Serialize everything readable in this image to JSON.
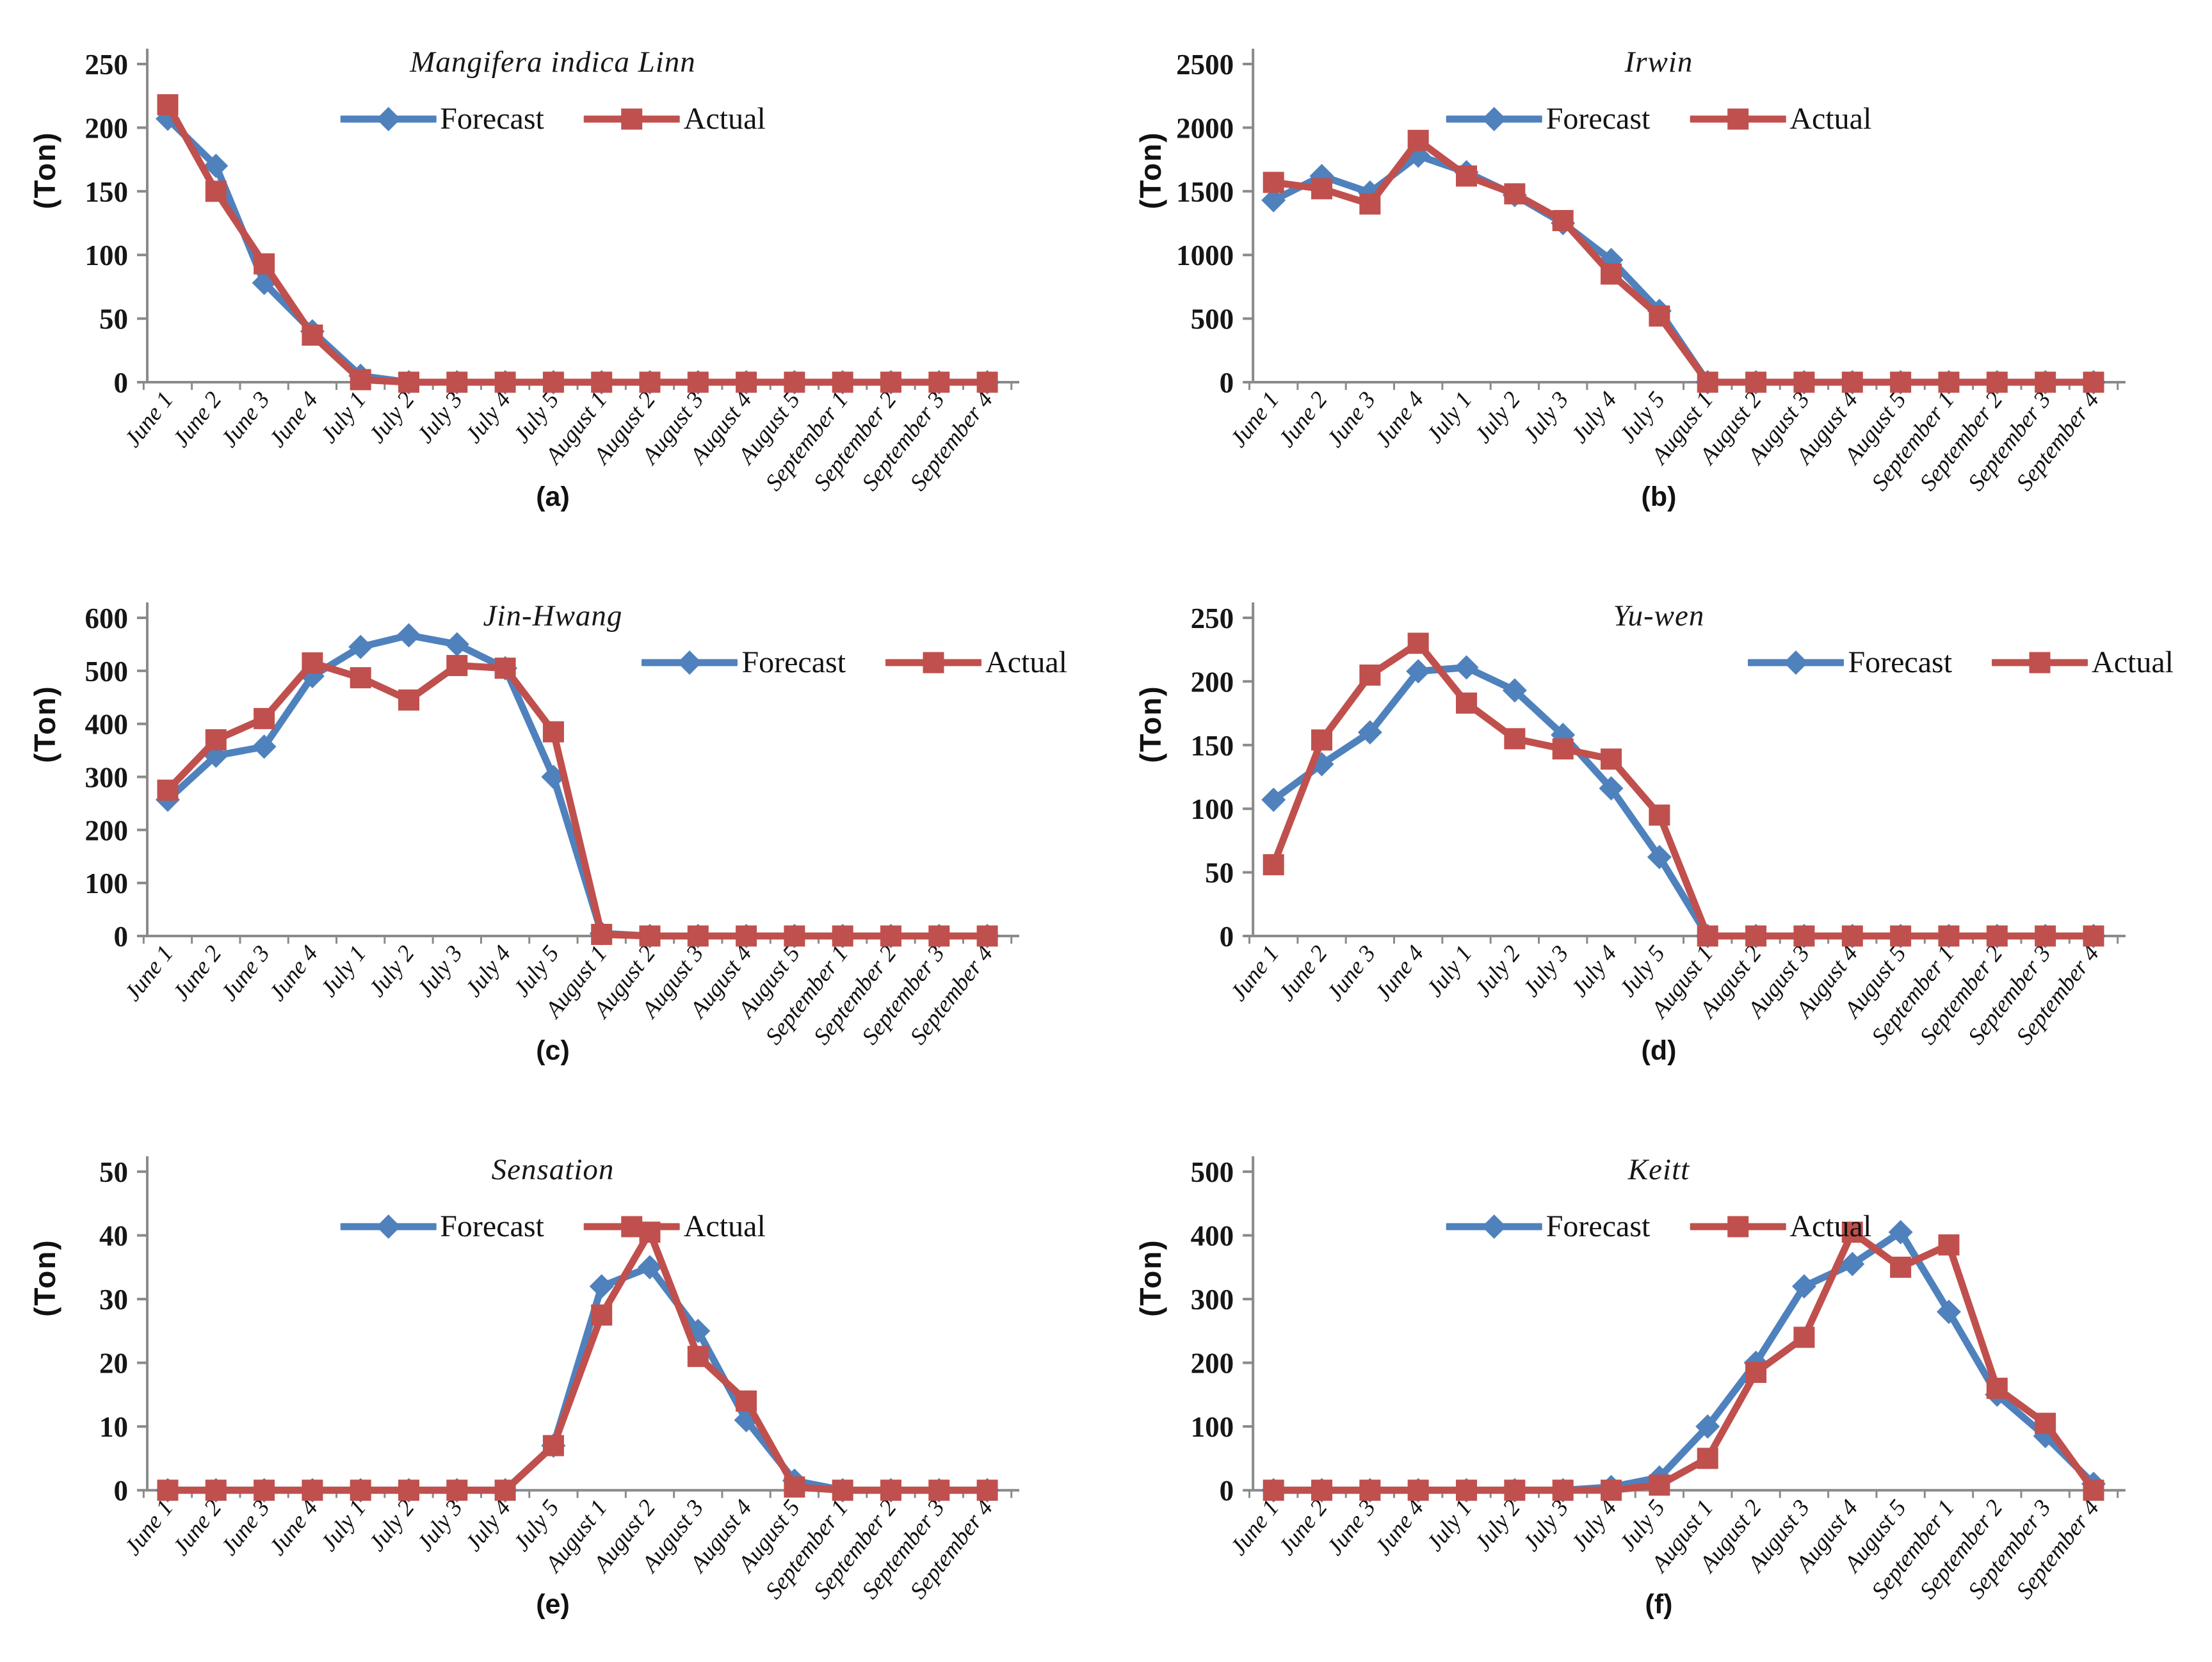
{
  "figure": {
    "ylabel": "(Ton)",
    "axis_color": "#8a8a8a",
    "text_color": "#161616",
    "forecast_color": "#4f81bd",
    "actual_color": "#c0504d"
  },
  "chart_data": [
    {
      "type": "line",
      "panel_label": "(a)",
      "title": "Mangifera indica Linn",
      "xlabel": "",
      "ylabel": "(Ton)",
      "ylim": [
        0,
        250
      ],
      "ytick_step": 50,
      "grid": false,
      "legend_position": "top-center",
      "categories": [
        "June 1",
        "June 2",
        "June 3",
        "June 4",
        "July 1",
        "July 2",
        "July 3",
        "July 4",
        "July 5",
        "August 1",
        "August 2",
        "August 3",
        "August 4",
        "August 5",
        "September 1",
        "September 2",
        "September 3",
        "September 4"
      ],
      "series": [
        {
          "name": "Forecast",
          "color": "#4f81bd",
          "marker": "diamond",
          "values": [
            207,
            170,
            78,
            40,
            5,
            0,
            0,
            0,
            0,
            0,
            0,
            0,
            0,
            0,
            0,
            0,
            0,
            0
          ]
        },
        {
          "name": "Actual",
          "color": "#c0504d",
          "marker": "square",
          "values": [
            218,
            150,
            93,
            37,
            2,
            0,
            0,
            0,
            0,
            0,
            0,
            0,
            0,
            0,
            0,
            0,
            0,
            0
          ]
        }
      ]
    },
    {
      "type": "line",
      "panel_label": "(b)",
      "title": "Irwin",
      "xlabel": "",
      "ylabel": "(Ton)",
      "ylim": [
        0,
        2500
      ],
      "ytick_step": 500,
      "grid": false,
      "legend_position": "top-center",
      "categories": [
        "June 1",
        "June 2",
        "June 3",
        "June 4",
        "July 1",
        "July 2",
        "July 3",
        "July 4",
        "July 5",
        "August 1",
        "August 2",
        "August 3",
        "August 4",
        "August 5",
        "September 1",
        "September 2",
        "September 3",
        "September 4"
      ],
      "series": [
        {
          "name": "Forecast",
          "color": "#4f81bd",
          "marker": "diamond",
          "values": [
            1430,
            1620,
            1490,
            1780,
            1650,
            1470,
            1250,
            960,
            560,
            0,
            0,
            0,
            0,
            0,
            0,
            0,
            0,
            0
          ]
        },
        {
          "name": "Actual",
          "color": "#c0504d",
          "marker": "square",
          "values": [
            1570,
            1520,
            1400,
            1900,
            1620,
            1480,
            1270,
            850,
            520,
            0,
            0,
            0,
            0,
            0,
            0,
            0,
            0,
            0
          ]
        }
      ]
    },
    {
      "type": "line",
      "panel_label": "(c)",
      "title": "Jin-Hwang",
      "xlabel": "",
      "ylabel": "(Ton)",
      "ylim": [
        0,
        600
      ],
      "ytick_step": 100,
      "grid": false,
      "legend_position": "upper-right",
      "categories": [
        "June 1",
        "June 2",
        "June 3",
        "June 4",
        "July 1",
        "July 2",
        "July 3",
        "July 4",
        "July 5",
        "August 1",
        "August 2",
        "August 3",
        "August 4",
        "August 5",
        "September 1",
        "September 2",
        "September 3",
        "September 4"
      ],
      "series": [
        {
          "name": "Forecast",
          "color": "#4f81bd",
          "marker": "diamond",
          "values": [
            257,
            340,
            357,
            490,
            545,
            567,
            550,
            505,
            300,
            5,
            0,
            0,
            0,
            0,
            0,
            0,
            0,
            0
          ]
        },
        {
          "name": "Actual",
          "color": "#c0504d",
          "marker": "square",
          "values": [
            275,
            370,
            410,
            515,
            487,
            445,
            510,
            505,
            385,
            3,
            0,
            0,
            0,
            0,
            0,
            0,
            0,
            0
          ]
        }
      ]
    },
    {
      "type": "line",
      "panel_label": "(d)",
      "title": "Yu-wen",
      "xlabel": "",
      "ylabel": "(Ton)",
      "ylim": [
        0,
        250
      ],
      "ytick_step": 50,
      "grid": false,
      "legend_position": "upper-right",
      "categories": [
        "June 1",
        "June 2",
        "June 3",
        "June 4",
        "July 1",
        "July 2",
        "July 3",
        "July 4",
        "July 5",
        "August 1",
        "August 2",
        "August 3",
        "August 4",
        "August 5",
        "September 1",
        "September 2",
        "September 3",
        "September 4"
      ],
      "series": [
        {
          "name": "Forecast",
          "color": "#4f81bd",
          "marker": "diamond",
          "values": [
            107,
            135,
            160,
            208,
            211,
            193,
            158,
            116,
            62,
            0,
            0,
            0,
            0,
            0,
            0,
            0,
            0,
            0
          ]
        },
        {
          "name": "Actual",
          "color": "#c0504d",
          "marker": "square",
          "values": [
            56,
            154,
            205,
            230,
            183,
            155,
            147,
            139,
            95,
            0,
            0,
            0,
            0,
            0,
            0,
            0,
            0,
            0
          ]
        }
      ]
    },
    {
      "type": "line",
      "panel_label": "(e)",
      "title": "Sensation",
      "xlabel": "",
      "ylabel": "(Ton)",
      "ylim": [
        0,
        50
      ],
      "ytick_step": 10,
      "grid": false,
      "legend_position": "top-center",
      "categories": [
        "June 1",
        "June 2",
        "June 3",
        "June 4",
        "July 1",
        "July 2",
        "July 3",
        "July 4",
        "July 5",
        "August 1",
        "August 2",
        "August 3",
        "August 4",
        "August 5",
        "September 1",
        "September 2",
        "September 3",
        "September 4"
      ],
      "series": [
        {
          "name": "Forecast",
          "color": "#4f81bd",
          "marker": "diamond",
          "values": [
            0,
            0,
            0,
            0,
            0,
            0,
            0,
            0,
            7,
            32,
            35,
            25,
            11,
            1.5,
            0,
            0,
            0,
            0
          ]
        },
        {
          "name": "Actual",
          "color": "#c0504d",
          "marker": "square",
          "values": [
            0,
            0,
            0,
            0,
            0,
            0,
            0,
            0,
            7,
            27.5,
            40.5,
            21,
            14,
            0.5,
            0,
            0,
            0,
            0
          ]
        }
      ]
    },
    {
      "type": "line",
      "panel_label": "(f)",
      "title": "Keitt",
      "xlabel": "",
      "ylabel": "(Ton)",
      "ylim": [
        0,
        500
      ],
      "ytick_step": 100,
      "grid": false,
      "legend_position": "top-center",
      "categories": [
        "June 1",
        "June 2",
        "June 3",
        "June 4",
        "July 1",
        "July 2",
        "July 3",
        "July 4",
        "July 5",
        "August 1",
        "August 2",
        "August 3",
        "August 4",
        "August 5",
        "September 1",
        "September 2",
        "September 3",
        "September 4"
      ],
      "series": [
        {
          "name": "Forecast",
          "color": "#4f81bd",
          "marker": "diamond",
          "values": [
            0,
            0,
            0,
            0,
            0,
            0,
            0,
            5,
            20,
            100,
            200,
            320,
            355,
            405,
            280,
            150,
            85,
            10
          ]
        },
        {
          "name": "Actual",
          "color": "#c0504d",
          "marker": "square",
          "values": [
            0,
            0,
            0,
            0,
            0,
            0,
            0,
            0,
            8,
            50,
            185,
            240,
            405,
            350,
            385,
            160,
            105,
            0
          ]
        }
      ]
    }
  ]
}
